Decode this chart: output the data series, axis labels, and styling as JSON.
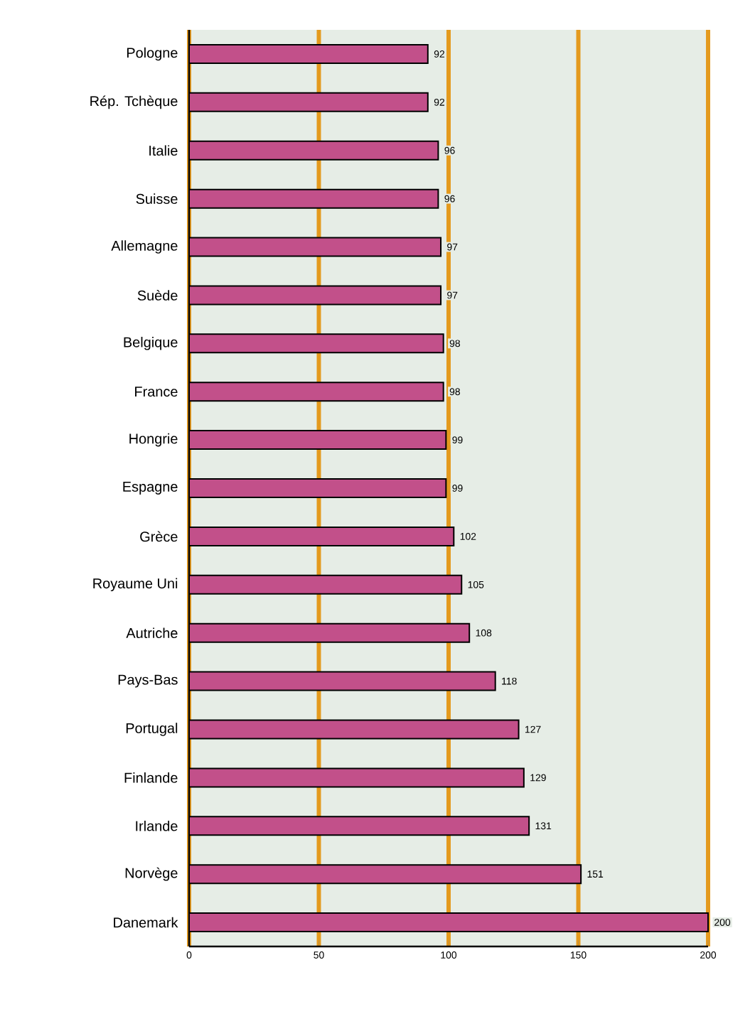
{
  "chart_data": {
    "type": "bar",
    "orientation": "horizontal",
    "categories": [
      "Pologne",
      "Rép. Tchèque",
      "Italie",
      "Suisse",
      "Allemagne",
      "Suède",
      "Belgique",
      "France",
      "Hongrie",
      "Espagne",
      "Grèce",
      "Royaume Uni",
      "Autriche",
      "Pays-Bas",
      "Portugal",
      "Finlande",
      "Irlande",
      "Norvège",
      "Danemark"
    ],
    "values": [
      92,
      92,
      96,
      96,
      97,
      97,
      98,
      98,
      99,
      99,
      102,
      105,
      108,
      118,
      127,
      129,
      131,
      151,
      200
    ],
    "color": "#c2508a",
    "xlim": [
      0,
      200
    ],
    "xticks": [
      0,
      50,
      100,
      150,
      200
    ],
    "grid": "x",
    "data_labels": true
  }
}
